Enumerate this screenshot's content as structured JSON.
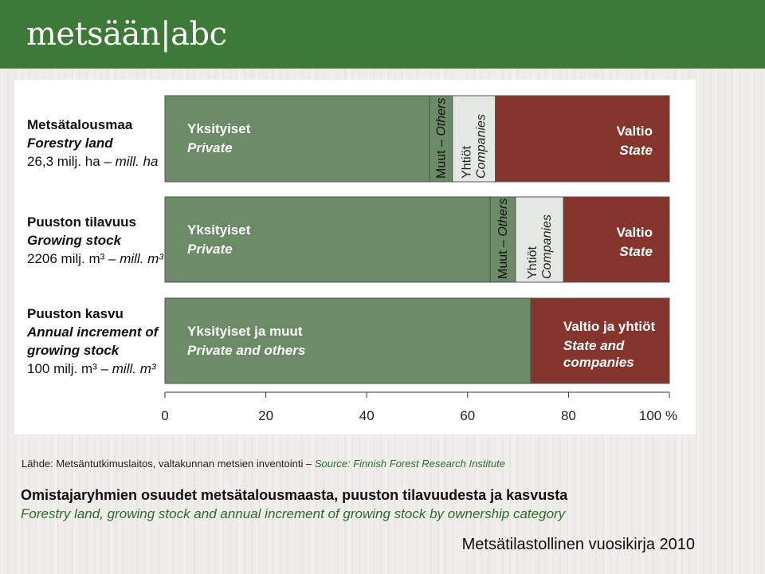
{
  "header": {
    "logo_text": "metsään|abc"
  },
  "chart_data": {
    "type": "bar",
    "orientation": "horizontal",
    "stacked": true,
    "x_unit": "%",
    "xlim": [
      0,
      100
    ],
    "x_ticks": [
      "0",
      "20",
      "40",
      "60",
      "80",
      "100 %"
    ],
    "x_tick_values": [
      0,
      20,
      40,
      60,
      80,
      100
    ],
    "colors": {
      "private": "#6b8a66",
      "others": "#6b8a66",
      "companies": "#e3e8e0",
      "state": "#86352c",
      "outline": "#555555"
    },
    "rows": [
      {
        "label_fi": "Metsätalousmaa",
        "label_en": "Forestry land",
        "amount": "26,3 milj. ha – ",
        "amount_unit": "mill. ha",
        "segments": [
          {
            "key": "private",
            "fi": "Yksityiset",
            "en": "Private",
            "value": 52.5
          },
          {
            "key": "others",
            "fi": "Muut – ",
            "en": "Others",
            "value": 4.5
          },
          {
            "key": "companies",
            "fi": "Yhtiöt",
            "en": "Companies",
            "value": 8.5
          },
          {
            "key": "state",
            "fi": "Valtio",
            "en": "State",
            "value": 34.5
          }
        ]
      },
      {
        "label_fi": "Puuston tilavuus",
        "label_en": "Growing stock",
        "amount": "2206 milj. m³ – ",
        "amount_unit": "mill. m³",
        "segments": [
          {
            "key": "private",
            "fi": "Yksityiset",
            "en": "Private",
            "value": 64.5
          },
          {
            "key": "others",
            "fi": "Muut – ",
            "en": "Others",
            "value": 5.0
          },
          {
            "key": "companies",
            "fi": "Yhtiöt",
            "en": "Companies",
            "value": 9.5
          },
          {
            "key": "state",
            "fi": "Valtio",
            "en": "State",
            "value": 21.0
          }
        ]
      },
      {
        "label_fi": "Puuston kasvu",
        "label_en": "Annual increment of growing stock",
        "amount": "100 milj. m³ – ",
        "amount_unit": "mill. m³",
        "segments": [
          {
            "key": "private",
            "fi": "Yksityiset ja muut",
            "en": "Private and others",
            "value": 72.5
          },
          {
            "key": "state",
            "fi": "Valtio ja yhtiöt",
            "en": "State  and companies",
            "value": 27.5
          }
        ]
      }
    ]
  },
  "footer": {
    "source_fi": "Lähde: Metsäntutkimuslaitos, valtakunnan metsien inventointi – ",
    "source_en": "Source: Finnish Forest Research Institute",
    "title_fi": "Omistajaryhmien osuudet metsätalousmaasta, puuston tilavuudesta ja kasvusta",
    "title_en": "Forestry land, growing stock and annual increment of growing stock by ownership category",
    "yearbook": "Metsätilastollinen vuosikirja 2010"
  }
}
